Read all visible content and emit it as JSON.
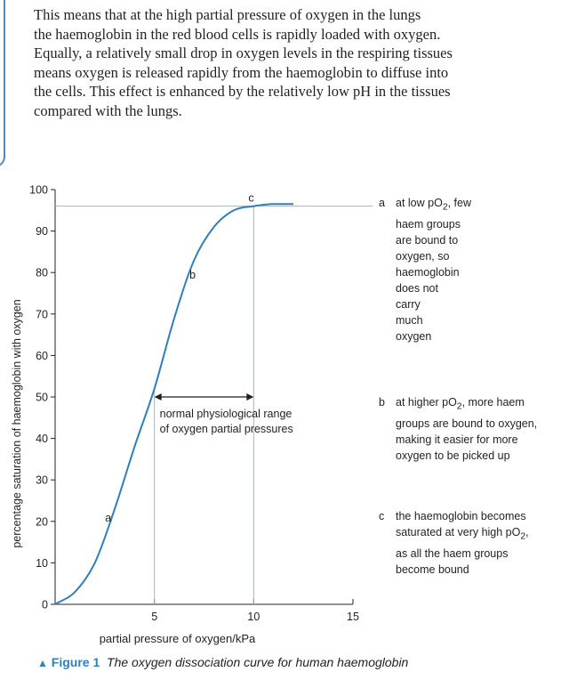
{
  "text": {
    "lines": [
      "This means that at the high partial pressure of oxygen in the lungs",
      "the haemoglobin in the red blood cells is rapidly loaded with oxygen.",
      "Equally, a relatively small drop in oxygen levels in the respiring tissues",
      "means oxygen is released rapidly from the haemoglobin to diffuse into",
      "the cells. This effect is enhanced by the relatively low pH in the tissues",
      "compared with the lungs."
    ]
  },
  "chart_data": {
    "type": "line",
    "xlabel": "partial pressure of oxygen/kPa",
    "ylabel": "percentage saturation of haemoglobin with oxygen",
    "xlim": [
      0,
      15
    ],
    "ylim": [
      0,
      100
    ],
    "x_ticks": [
      5,
      10,
      15
    ],
    "y_ticks": [
      0,
      10,
      20,
      30,
      40,
      50,
      60,
      70,
      80,
      90,
      100
    ],
    "grid": false,
    "series": [
      {
        "x": [
          0,
          1,
          2,
          3,
          4,
          5,
          6,
          7,
          8,
          9,
          10,
          11,
          12
        ],
        "values": [
          0,
          3,
          10,
          23,
          38,
          52,
          69,
          83,
          91,
          95,
          96,
          96.5,
          96.5
        ]
      }
    ],
    "reference_lines": {
      "horizontal_y": 96,
      "vertical_x": [
        5,
        10
      ]
    },
    "range_arrow": {
      "from": 5,
      "to": 10,
      "y": 50
    },
    "point_labels": [
      {
        "label": "a",
        "x": 2.7
      },
      {
        "label": "b",
        "x": 6.5
      },
      {
        "label": "c",
        "x": 10
      }
    ],
    "range_label": [
      "normal physiological range",
      "of oxygen partial pressures"
    ],
    "annotations": [
      {
        "letter": "a",
        "lines": [
          "at low pO",
          "2",
          ", few",
          "haem groups",
          "are bound to",
          "oxygen, so",
          "haemoglobin",
          "does not",
          "carry",
          "much",
          "oxygen"
        ]
      },
      {
        "letter": "b",
        "lines": [
          "at higher pO",
          "2",
          ", more haem",
          "groups are bound to oxygen,",
          "making it easier for more",
          "oxygen to be picked up"
        ]
      },
      {
        "letter": "c",
        "lines": [
          "the haemoglobin becomes",
          "saturated at very high pO",
          "2",
          ",",
          "as all the haem groups",
          "become bound"
        ]
      }
    ]
  },
  "caption": {
    "marker": "▲",
    "label": "Figure 1",
    "text": "The oxygen dissociation curve for human haemoglobin"
  },
  "colors": {
    "curve": "#2f7fbf",
    "reference": "#8fb8dc",
    "accent": "#2f7fbf",
    "axis": "#231f20"
  }
}
